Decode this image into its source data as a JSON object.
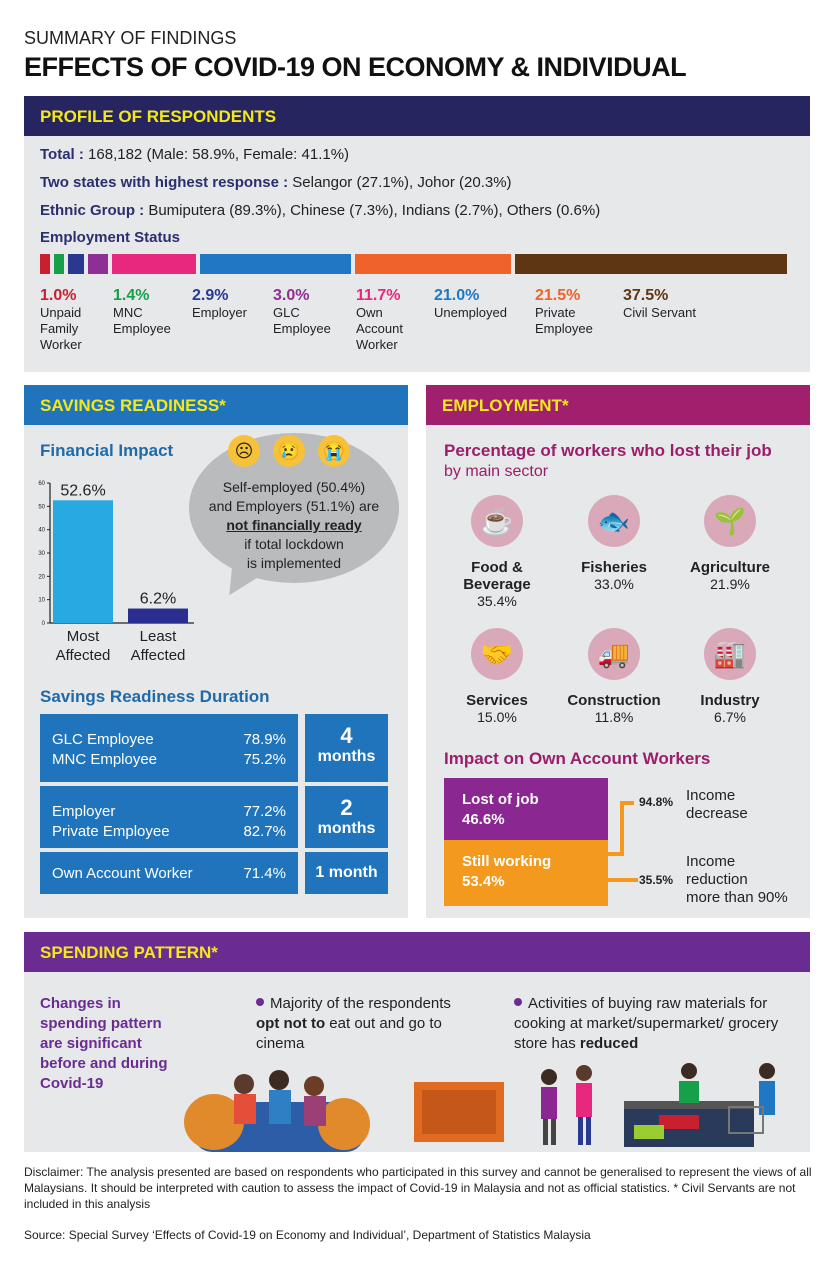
{
  "header": {
    "supertitle": "SUMMARY OF FINDINGS",
    "title": "EFFECTS OF COVID-19 ON ECONOMY & INDIVIDUAL"
  },
  "colors": {
    "profile_header": "#27255f",
    "savings_header": "#1f74bb",
    "employment_header": "#a0206e",
    "spending_header": "#6a2c91",
    "header_text": "#f3e81a"
  },
  "profile": {
    "title": "PROFILE OF RESPONDENTS",
    "total_label": "Total :",
    "total_value": " 168,182 (Male: 58.9%, Female: 41.1%)",
    "states_label": "Two states with highest response :",
    "states_value": " Selangor (27.1%), Johor (20.3%)",
    "ethnic_label": "Ethnic Group :",
    "ethnic_value": " Bumiputera (89.3%), Chinese (7.3%), Indians (2.7%), Others (0.6%)",
    "employment_title": "Employment Status",
    "employment": [
      {
        "pct": "1.0%",
        "label": "Unpaid Family Worker",
        "value": 1.0,
        "color": "#c8202f"
      },
      {
        "pct": "1.4%",
        "label": "MNC Employee",
        "value": 1.4,
        "color": "#16a04a"
      },
      {
        "pct": "2.9%",
        "label": "Employer",
        "value": 2.9,
        "color": "#2a3990"
      },
      {
        "pct": "3.0%",
        "label": "GLC Employee",
        "value": 3.0,
        "color": "#8e2f95"
      },
      {
        "pct": "11.7%",
        "label": "Own Account Worker",
        "value": 11.7,
        "color": "#e8287f"
      },
      {
        "pct": "21.0%",
        "label": "Unemployed",
        "value": 21.0,
        "color": "#1f78c1"
      },
      {
        "pct": "21.5%",
        "label": "Private Employee",
        "value": 21.5,
        "color": "#f0622b"
      },
      {
        "pct": "37.5%",
        "label": "Civil Servant",
        "value": 37.5,
        "color": "#5e3614"
      }
    ]
  },
  "savings": {
    "title": "SAVINGS READINESS*",
    "impact_title": "Financial Impact",
    "bubble_line1": "Self-employed (50.4%)",
    "bubble_line2": "and Employers (51.1%) are",
    "bubble_emph": "not financially ready",
    "bubble_line3": "if total lockdown",
    "bubble_line4": "is implemented",
    "emojis": [
      "worried-face-icon",
      "crying-face-icon",
      "loudly-crying-face-icon"
    ],
    "duration_title": "Savings Readiness Duration",
    "durations": [
      {
        "rows": [
          {
            "label": "GLC Employee",
            "pct": "78.9%"
          },
          {
            "label": "MNC Employee",
            "pct": "75.2%"
          }
        ],
        "num": "4",
        "unit": "months"
      },
      {
        "rows": [
          {
            "label": "Employer",
            "pct": "77.2%"
          },
          {
            "label": "Private Employee",
            "pct": "82.7%"
          }
        ],
        "num": "2",
        "unit": "months"
      },
      {
        "rows": [
          {
            "label": "Own Account Worker",
            "pct": "71.4%"
          }
        ],
        "num": "1 month",
        "unit": ""
      }
    ]
  },
  "chart_data": {
    "type": "bar",
    "categories": [
      "Most Affected",
      "Least Affected"
    ],
    "values": [
      52.6,
      6.2
    ],
    "data_labels": [
      "52.6%",
      "6.2%"
    ],
    "ylim": [
      0,
      60
    ],
    "yticks": [
      "0",
      "10",
      "20",
      "30",
      "40",
      "50",
      "60"
    ],
    "colors": [
      "#29a9e1",
      "#2a2f8f"
    ],
    "grid": false
  },
  "employment": {
    "title": "EMPLOYMENT*",
    "sub1": "Percentage of workers who lost their job",
    "sub2": "by main sector",
    "sectors": [
      {
        "name": "Food & Beverage",
        "pct": "35.4%",
        "icon": "coffee-cup-icon",
        "glyph": "☕"
      },
      {
        "name": "Fisheries",
        "pct": "33.0%",
        "icon": "fish-icon",
        "glyph": "🐟"
      },
      {
        "name": "Agriculture",
        "pct": "21.9%",
        "icon": "plant-icon",
        "glyph": "🌱"
      },
      {
        "name": "Services",
        "pct": "15.0%",
        "icon": "handshake-icon",
        "glyph": "🤝"
      },
      {
        "name": "Construction",
        "pct": "11.8%",
        "icon": "cement-truck-icon",
        "glyph": "🚚"
      },
      {
        "name": "Industry",
        "pct": "6.7%",
        "icon": "factory-icon",
        "glyph": "🏭"
      }
    ],
    "own_title": "Impact on Own Account Workers",
    "lost_label": "Lost of job",
    "lost_pct": "46.6%",
    "working_label": "Still working",
    "working_pct": "53.4%",
    "income_dec_pct": "94.8%",
    "income_dec_label1": "Income",
    "income_dec_label2": "decrease",
    "income_red_pct": "35.5%",
    "income_red_label1": "Income",
    "income_red_label2": "reduction",
    "income_red_label3": "more than 90%"
  },
  "spending": {
    "title": "SPENDING PATTERN*",
    "lead": "Changes in spending pattern are significant before and during Covid-19",
    "p1a": "Majority of the respondents ",
    "p1b": "opt not to",
    "p1c": " eat out and go to cinema",
    "p2a": "Activities of buying raw materials for cooking at market/supermarket/ grocery store has ",
    "p2b": "reduced"
  },
  "footer": {
    "disclaimer": "Disclaimer: The analysis presented are based on respondents who participated in this survey and cannot be generalised to represent the views of all Malaysians. It should be interpreted with caution to assess the impact of Covid-19 in Malaysia and not as official statistics.  * Civil Servants are not included in this analysis",
    "source": "Source: Special Survey ‘Effects of Covid-19 on Economy and Individual’, Department of Statistics Malaysia"
  }
}
